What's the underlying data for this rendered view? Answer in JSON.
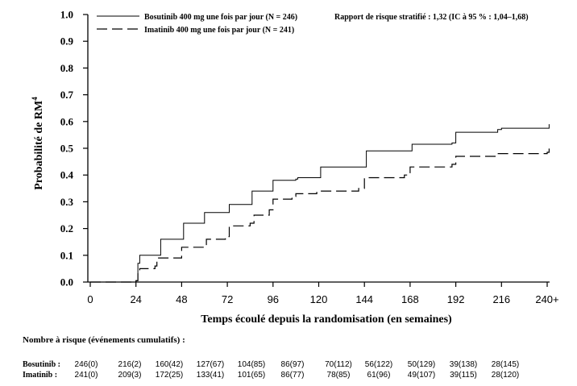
{
  "chart_data": {
    "type": "line",
    "ylabel": "Probabilité de RM",
    "ylabel_superscript": "4",
    "xlabel": "Temps écoulé depuis la randomisation (en semaines)",
    "ylim": [
      0,
      1
    ],
    "xlim": [
      0,
      240
    ],
    "y_ticks": [
      "0.0",
      "0.1",
      "0.2",
      "0.3",
      "0.4",
      "0.5",
      "0.6",
      "0.7",
      "0.8",
      "0.9",
      "1.0"
    ],
    "x_ticks": [
      "0",
      "24",
      "48",
      "72",
      "96",
      "120",
      "144",
      "168",
      "192",
      "216",
      "240+"
    ],
    "annotation": "Rapport de risque stratifié : 1,32 (IC à 95 % : 1,04–1,68)",
    "legend_position": "top-left",
    "series": [
      {
        "name": "Bosutinib 400 mg une fois par jour (N = 246)",
        "line_style": "solid",
        "points": [
          [
            0,
            0
          ],
          [
            12,
            0
          ],
          [
            24,
            0.005
          ],
          [
            25,
            0.07
          ],
          [
            26,
            0.1
          ],
          [
            35,
            0.1
          ],
          [
            37,
            0.16
          ],
          [
            46,
            0.16
          ],
          [
            49,
            0.22
          ],
          [
            58,
            0.22
          ],
          [
            60,
            0.26
          ],
          [
            71,
            0.26
          ],
          [
            73,
            0.29
          ],
          [
            83,
            0.29
          ],
          [
            85,
            0.34
          ],
          [
            94,
            0.34
          ],
          [
            96,
            0.38
          ],
          [
            108,
            0.385
          ],
          [
            109,
            0.39
          ],
          [
            119,
            0.39
          ],
          [
            121,
            0.43
          ],
          [
            143,
            0.43
          ],
          [
            145,
            0.49
          ],
          [
            167,
            0.49
          ],
          [
            169,
            0.515
          ],
          [
            190,
            0.52
          ],
          [
            192,
            0.56
          ],
          [
            214,
            0.57
          ],
          [
            216,
            0.575
          ],
          [
            240,
            0.575
          ],
          [
            241,
            0.59
          ]
        ]
      },
      {
        "name": "Imatinib 400 mg une fois par jour (N = 241)",
        "line_style": "dashed",
        "points": [
          [
            0,
            0
          ],
          [
            24,
            0.005
          ],
          [
            25,
            0.04
          ],
          [
            26,
            0.05
          ],
          [
            34,
            0.06
          ],
          [
            35,
            0.09
          ],
          [
            45,
            0.09
          ],
          [
            48,
            0.13
          ],
          [
            58,
            0.13
          ],
          [
            61,
            0.16
          ],
          [
            71,
            0.17
          ],
          [
            73,
            0.21
          ],
          [
            84,
            0.22
          ],
          [
            86,
            0.25
          ],
          [
            94,
            0.27
          ],
          [
            96,
            0.31
          ],
          [
            106,
            0.32
          ],
          [
            108,
            0.33
          ],
          [
            117,
            0.33
          ],
          [
            119,
            0.34
          ],
          [
            141,
            0.35
          ],
          [
            144,
            0.39
          ],
          [
            165,
            0.4
          ],
          [
            168,
            0.43
          ],
          [
            190,
            0.44
          ],
          [
            192,
            0.47
          ],
          [
            214,
            0.48
          ],
          [
            216,
            0.48
          ],
          [
            240,
            0.485
          ],
          [
            241,
            0.5
          ]
        ]
      }
    ]
  },
  "risk_table": {
    "title": "Nombre à risque (événements cumulatifs) :",
    "rows": [
      {
        "label": "Bosutinib :",
        "values": [
          "246(0)",
          "216(2)",
          "160(42)",
          "127(67)",
          "104(85)",
          "86(97)",
          "70(112)",
          "56(122)",
          "50(129)",
          "39(138)",
          "28(145)"
        ]
      },
      {
        "label": "Imatinib :",
        "values": [
          "241(0)",
          "209(3)",
          "172(25)",
          "133(41)",
          "101(65)",
          "86(77)",
          "78(85)",
          "61(96)",
          "49(107)",
          "39(115)",
          "28(120)"
        ]
      }
    ]
  }
}
